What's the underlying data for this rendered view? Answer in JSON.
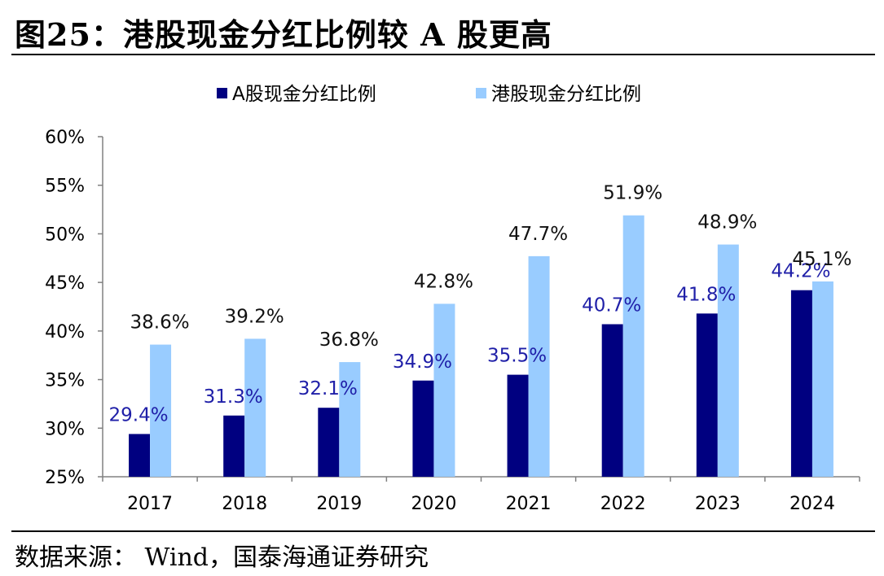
{
  "header": {
    "title": "图25：港股现金分红比例较 A 股更高"
  },
  "footer": {
    "source": "数据来源： Wind，国泰海通证券研究"
  },
  "colors": {
    "series_a": "#000080",
    "series_hk": "#99ccff",
    "label_a": "#1f1fa8",
    "label_hk": "#111111"
  },
  "chart_data": {
    "type": "bar",
    "categories": [
      "2017",
      "2018",
      "2019",
      "2020",
      "2021",
      "2022",
      "2023",
      "2024"
    ],
    "series": [
      {
        "name": "A股现金分红比例",
        "values": [
          29.4,
          31.3,
          32.1,
          34.9,
          35.5,
          40.7,
          41.8,
          44.2
        ],
        "labels": [
          "29.4%",
          "31.3%",
          "32.1%",
          "34.9%",
          "35.5%",
          "40.7%",
          "41.8%",
          "44.2%"
        ]
      },
      {
        "name": "港股现金分红比例",
        "values": [
          38.6,
          39.2,
          36.8,
          42.8,
          47.7,
          51.9,
          48.9,
          45.1
        ],
        "labels": [
          "38.6%",
          "39.2%",
          "36.8%",
          "42.8%",
          "47.7%",
          "51.9%",
          "48.9%",
          "45.1%"
        ]
      }
    ],
    "ylim": [
      25,
      60
    ],
    "yticks": [
      "25%",
      "30%",
      "35%",
      "40%",
      "45%",
      "50%",
      "55%",
      "60%"
    ],
    "legend_position": "top",
    "grid": false
  }
}
